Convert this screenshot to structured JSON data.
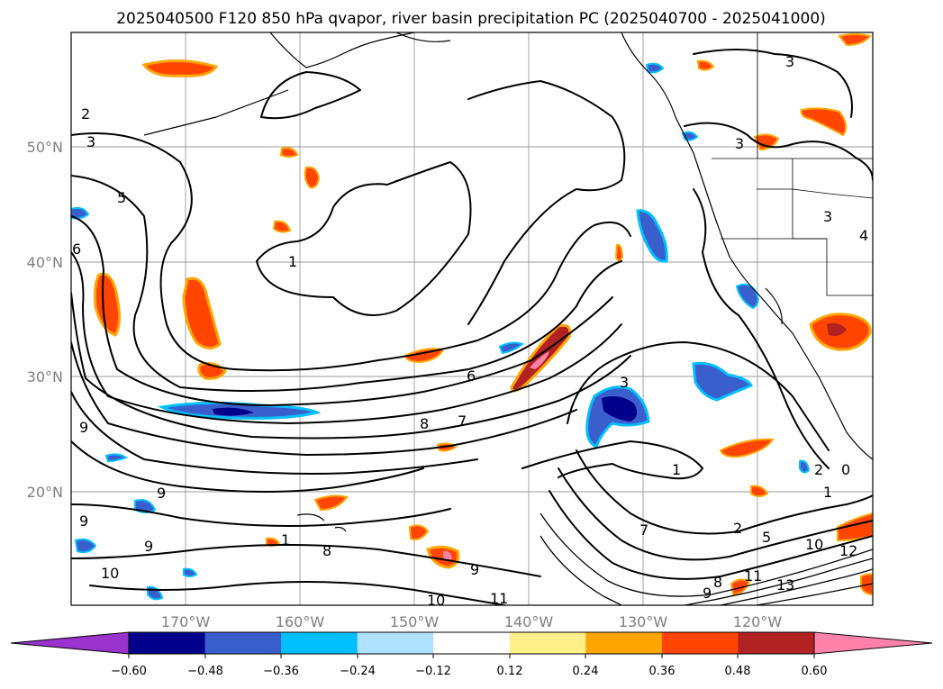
{
  "title": "2025040500 F120 850 hPa qvapor, river basin precipitation PC (2025040700 - 2025041000)",
  "map": {
    "lat_labels": [
      "50°N",
      "40°N",
      "30°N",
      "20°N"
    ],
    "lon_labels": [
      "170°W",
      "160°W",
      "150°W",
      "140°W",
      "130°W",
      "120°W"
    ],
    "contour_labels": [
      "2",
      "3",
      "5",
      "6",
      "1",
      "6",
      "7",
      "8",
      "9",
      "9",
      "9",
      "9",
      "1",
      "8",
      "9",
      "10",
      "10",
      "11",
      "3",
      "1",
      "2",
      "5",
      "10",
      "12",
      "13",
      "9",
      "8",
      "11",
      "3",
      "3",
      "3",
      "4",
      "2",
      "0",
      "1",
      "7"
    ]
  },
  "colorbar": {
    "tick_labels": [
      "−0.60",
      "−0.48",
      "−0.36",
      "−0.24",
      "−0.12",
      "0.12",
      "0.24",
      "0.36",
      "0.48",
      "0.60"
    ],
    "colors": [
      "#9a32cd",
      "#00008b",
      "#3a5fcd",
      "#00bfff",
      "#b0e2ff",
      "#ffffff",
      "#fff08a",
      "#ffa500",
      "#ff4500",
      "#b22222",
      "#ff82ab"
    ]
  }
}
